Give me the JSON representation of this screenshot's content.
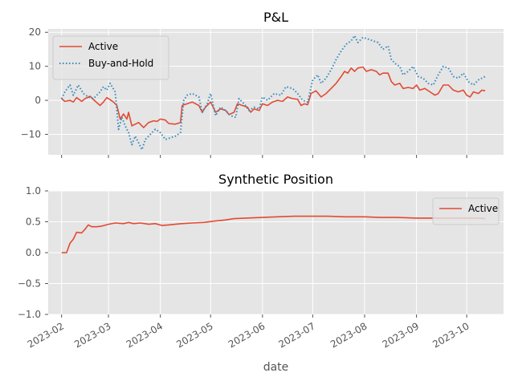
{
  "chart_data": [
    {
      "type": "line",
      "title": "P&L",
      "xlabel": "",
      "ylabel": "",
      "ylim": [
        -16,
        21
      ],
      "yticks": [
        -10,
        0,
        10,
        20
      ],
      "grid": true,
      "legend": "top-left",
      "series": [
        {
          "name": "Active",
          "color": "#e24a33",
          "style": "solid",
          "points": [
            [
              "2023-02-01",
              0.5
            ],
            [
              "2023-02-03",
              -0.3
            ],
            [
              "2023-02-06",
              0.0
            ],
            [
              "2023-02-08",
              -0.5
            ],
            [
              "2023-02-10",
              0.8
            ],
            [
              "2023-02-13",
              -0.3
            ],
            [
              "2023-02-15",
              0.5
            ],
            [
              "2023-02-18",
              1.2
            ],
            [
              "2023-02-21",
              -0.2
            ],
            [
              "2023-02-24",
              -1.5
            ],
            [
              "2023-02-26",
              -0.5
            ],
            [
              "2023-02-28",
              0.8
            ],
            [
              "2023-03-02",
              0.2
            ],
            [
              "2023-03-04",
              -0.5
            ],
            [
              "2023-03-06",
              -1.5
            ],
            [
              "2023-03-08",
              -5.5
            ],
            [
              "2023-03-10",
              -4.0
            ],
            [
              "2023-03-12",
              -5.5
            ],
            [
              "2023-03-13",
              -3.5
            ],
            [
              "2023-03-15",
              -7.5
            ],
            [
              "2023-03-17",
              -7.0
            ],
            [
              "2023-03-19",
              -6.5
            ],
            [
              "2023-03-22",
              -8.0
            ],
            [
              "2023-03-25",
              -6.5
            ],
            [
              "2023-03-28",
              -6.0
            ],
            [
              "2023-03-30",
              -6.2
            ],
            [
              "2023-04-01",
              -5.5
            ],
            [
              "2023-04-04",
              -5.8
            ],
            [
              "2023-04-06",
              -6.8
            ],
            [
              "2023-04-10",
              -7.0
            ],
            [
              "2023-04-13",
              -6.5
            ],
            [
              "2023-04-14",
              -1.5
            ],
            [
              "2023-04-17",
              -1.0
            ],
            [
              "2023-04-20",
              -0.5
            ],
            [
              "2023-04-24",
              -1.5
            ],
            [
              "2023-04-26",
              -3.5
            ],
            [
              "2023-04-28",
              -2.0
            ],
            [
              "2023-05-01",
              -0.5
            ],
            [
              "2023-05-04",
              -3.5
            ],
            [
              "2023-05-07",
              -2.5
            ],
            [
              "2023-05-10",
              -3.0
            ],
            [
              "2023-05-12",
              -4.2
            ],
            [
              "2023-05-15",
              -3.5
            ],
            [
              "2023-05-17",
              -1.0
            ],
            [
              "2023-05-20",
              -1.5
            ],
            [
              "2023-05-23",
              -2.0
            ],
            [
              "2023-05-25",
              -3.5
            ],
            [
              "2023-05-27",
              -2.5
            ],
            [
              "2023-05-30",
              -3.0
            ],
            [
              "2023-06-01",
              -1.0
            ],
            [
              "2023-06-04",
              -1.5
            ],
            [
              "2023-06-07",
              -0.5
            ],
            [
              "2023-06-10",
              0.0
            ],
            [
              "2023-06-13",
              -0.3
            ],
            [
              "2023-06-16",
              1.0
            ],
            [
              "2023-06-19",
              0.5
            ],
            [
              "2023-06-22",
              0.3
            ],
            [
              "2023-06-24",
              -1.5
            ],
            [
              "2023-06-26",
              -1.0
            ],
            [
              "2023-06-28",
              -1.3
            ],
            [
              "2023-06-30",
              2.0
            ],
            [
              "2023-07-03",
              2.8
            ],
            [
              "2023-07-06",
              1.0
            ],
            [
              "2023-07-09",
              2.0
            ],
            [
              "2023-07-12",
              3.5
            ],
            [
              "2023-07-15",
              5.0
            ],
            [
              "2023-07-18",
              7.0
            ],
            [
              "2023-07-20",
              8.5
            ],
            [
              "2023-07-22",
              8.0
            ],
            [
              "2023-07-24",
              9.5
            ],
            [
              "2023-07-26",
              8.5
            ],
            [
              "2023-07-28",
              9.5
            ],
            [
              "2023-07-31",
              9.8
            ],
            [
              "2023-08-02",
              8.5
            ],
            [
              "2023-08-05",
              9.0
            ],
            [
              "2023-08-08",
              8.5
            ],
            [
              "2023-08-10",
              7.5
            ],
            [
              "2023-08-12",
              8.0
            ],
            [
              "2023-08-15",
              8.0
            ],
            [
              "2023-08-17",
              5.5
            ],
            [
              "2023-08-19",
              4.5
            ],
            [
              "2023-08-22",
              5.0
            ],
            [
              "2023-08-24",
              3.5
            ],
            [
              "2023-08-27",
              3.8
            ],
            [
              "2023-08-30",
              3.5
            ],
            [
              "2023-09-01",
              4.5
            ],
            [
              "2023-09-03",
              3.0
            ],
            [
              "2023-09-06",
              3.5
            ],
            [
              "2023-09-09",
              2.5
            ],
            [
              "2023-09-12",
              1.5
            ],
            [
              "2023-09-14",
              2.0
            ],
            [
              "2023-09-17",
              4.5
            ],
            [
              "2023-09-20",
              4.5
            ],
            [
              "2023-09-23",
              3.0
            ],
            [
              "2023-09-26",
              2.5
            ],
            [
              "2023-09-29",
              3.0
            ],
            [
              "2023-10-01",
              1.5
            ],
            [
              "2023-10-03",
              1.0
            ],
            [
              "2023-10-05",
              2.5
            ],
            [
              "2023-10-08",
              2.0
            ],
            [
              "2023-10-10",
              3.0
            ],
            [
              "2023-10-12",
              2.8
            ]
          ]
        },
        {
          "name": "Buy-and-Hold",
          "color": "#348abd",
          "style": "dotted",
          "points": [
            [
              "2023-02-01",
              0.5
            ],
            [
              "2023-02-03",
              2.5
            ],
            [
              "2023-02-06",
              4.5
            ],
            [
              "2023-02-08",
              1.5
            ],
            [
              "2023-02-11",
              4.5
            ],
            [
              "2023-02-14",
              2.0
            ],
            [
              "2023-02-17",
              1.0
            ],
            [
              "2023-02-20",
              0.5
            ],
            [
              "2023-02-24",
              2.5
            ],
            [
              "2023-02-26",
              4.0
            ],
            [
              "2023-02-28",
              3.0
            ],
            [
              "2023-03-02",
              5.0
            ],
            [
              "2023-03-05",
              2.5
            ],
            [
              "2023-03-07",
              -8.5
            ],
            [
              "2023-03-09",
              -5.0
            ],
            [
              "2023-03-11",
              -7.5
            ],
            [
              "2023-03-13",
              -9.5
            ],
            [
              "2023-03-15",
              -13.0
            ],
            [
              "2023-03-17",
              -10.5
            ],
            [
              "2023-03-19",
              -12.5
            ],
            [
              "2023-03-21",
              -14.5
            ],
            [
              "2023-03-23",
              -11.5
            ],
            [
              "2023-03-26",
              -10.0
            ],
            [
              "2023-03-29",
              -8.5
            ],
            [
              "2023-04-01",
              -9.5
            ],
            [
              "2023-04-04",
              -11.5
            ],
            [
              "2023-04-07",
              -11.0
            ],
            [
              "2023-04-10",
              -10.5
            ],
            [
              "2023-04-13",
              -9.5
            ],
            [
              "2023-04-15",
              0.0
            ],
            [
              "2023-04-17",
              1.5
            ],
            [
              "2023-04-20",
              2.0
            ],
            [
              "2023-04-24",
              1.0
            ],
            [
              "2023-04-26",
              -3.5
            ],
            [
              "2023-04-29",
              -1.0
            ],
            [
              "2023-05-01",
              2.0
            ],
            [
              "2023-05-04",
              -4.5
            ],
            [
              "2023-05-07",
              -2.0
            ],
            [
              "2023-05-10",
              -3.0
            ],
            [
              "2023-05-13",
              -4.5
            ],
            [
              "2023-05-16",
              -5.0
            ],
            [
              "2023-05-18",
              0.5
            ],
            [
              "2023-05-21",
              -1.0
            ],
            [
              "2023-05-24",
              -3.0
            ],
            [
              "2023-05-27",
              -2.0
            ],
            [
              "2023-05-30",
              -2.5
            ],
            [
              "2023-06-01",
              1.0
            ],
            [
              "2023-06-04",
              0.0
            ],
            [
              "2023-06-08",
              2.0
            ],
            [
              "2023-06-12",
              1.5
            ],
            [
              "2023-06-15",
              4.0
            ],
            [
              "2023-06-19",
              3.5
            ],
            [
              "2023-06-22",
              2.0
            ],
            [
              "2023-06-25",
              0.0
            ],
            [
              "2023-06-28",
              -0.5
            ],
            [
              "2023-07-01",
              6.0
            ],
            [
              "2023-07-04",
              7.5
            ],
            [
              "2023-07-06",
              5.0
            ],
            [
              "2023-07-09",
              6.5
            ],
            [
              "2023-07-12",
              9.0
            ],
            [
              "2023-07-15",
              12.0
            ],
            [
              "2023-07-18",
              14.5
            ],
            [
              "2023-07-21",
              16.5
            ],
            [
              "2023-07-24",
              17.5
            ],
            [
              "2023-07-26",
              19.0
            ],
            [
              "2023-07-28",
              17.0
            ],
            [
              "2023-07-31",
              18.5
            ],
            [
              "2023-08-03",
              18.0
            ],
            [
              "2023-08-06",
              17.5
            ],
            [
              "2023-08-09",
              17.0
            ],
            [
              "2023-08-12",
              15.0
            ],
            [
              "2023-08-15",
              16.0
            ],
            [
              "2023-08-17",
              12.0
            ],
            [
              "2023-08-20",
              10.5
            ],
            [
              "2023-08-22",
              10.0
            ],
            [
              "2023-08-24",
              7.5
            ],
            [
              "2023-08-27",
              8.5
            ],
            [
              "2023-08-30",
              10.0
            ],
            [
              "2023-09-02",
              7.0
            ],
            [
              "2023-09-05",
              6.5
            ],
            [
              "2023-09-08",
              5.0
            ],
            [
              "2023-09-11",
              4.5
            ],
            [
              "2023-09-14",
              7.5
            ],
            [
              "2023-09-17",
              10.0
            ],
            [
              "2023-09-20",
              9.5
            ],
            [
              "2023-09-23",
              7.0
            ],
            [
              "2023-09-26",
              6.5
            ],
            [
              "2023-09-29",
              8.0
            ],
            [
              "2023-10-02",
              5.5
            ],
            [
              "2023-10-05",
              4.5
            ],
            [
              "2023-10-08",
              6.0
            ],
            [
              "2023-10-12",
              7.0
            ]
          ]
        }
      ]
    },
    {
      "type": "line",
      "title": "Synthetic Position",
      "xlabel": "date",
      "ylabel": "",
      "ylim": [
        -1.0,
        1.0
      ],
      "yticks": [
        -1.0,
        -0.5,
        0.0,
        0.5,
        1.0
      ],
      "ytick_labels": [
        "−1.0",
        "−0.5",
        "0.0",
        "0.5",
        "1.0"
      ],
      "grid": true,
      "legend": "top-right",
      "x_ticks": [
        "2023-02",
        "2023-03",
        "2023-04",
        "2023-05",
        "2023-06",
        "2023-07",
        "2023-08",
        "2023-09",
        "2023-10"
      ],
      "xlim": [
        "2023-01-24",
        "2023-10-23"
      ],
      "series": [
        {
          "name": "Active",
          "color": "#e24a33",
          "style": "solid",
          "points": [
            [
              "2023-02-01",
              0.0
            ],
            [
              "2023-02-04",
              0.0
            ],
            [
              "2023-02-06",
              0.15
            ],
            [
              "2023-02-08",
              0.22
            ],
            [
              "2023-02-10",
              0.33
            ],
            [
              "2023-02-13",
              0.32
            ],
            [
              "2023-02-15",
              0.38
            ],
            [
              "2023-02-17",
              0.45
            ],
            [
              "2023-02-19",
              0.42
            ],
            [
              "2023-02-22",
              0.42
            ],
            [
              "2023-02-25",
              0.43
            ],
            [
              "2023-03-01",
              0.46
            ],
            [
              "2023-03-05",
              0.48
            ],
            [
              "2023-03-10",
              0.47
            ],
            [
              "2023-03-13",
              0.49
            ],
            [
              "2023-03-16",
              0.47
            ],
            [
              "2023-03-20",
              0.48
            ],
            [
              "2023-03-25",
              0.46
            ],
            [
              "2023-03-29",
              0.47
            ],
            [
              "2023-04-02",
              0.44
            ],
            [
              "2023-04-06",
              0.45
            ],
            [
              "2023-04-10",
              0.46
            ],
            [
              "2023-04-14",
              0.47
            ],
            [
              "2023-04-20",
              0.48
            ],
            [
              "2023-04-27",
              0.49
            ],
            [
              "2023-05-03",
              0.51
            ],
            [
              "2023-05-10",
              0.53
            ],
            [
              "2023-05-15",
              0.55
            ],
            [
              "2023-05-22",
              0.56
            ],
            [
              "2023-06-01",
              0.57
            ],
            [
              "2023-06-10",
              0.58
            ],
            [
              "2023-06-20",
              0.59
            ],
            [
              "2023-06-28",
              0.59
            ],
            [
              "2023-07-10",
              0.59
            ],
            [
              "2023-07-20",
              0.58
            ],
            [
              "2023-08-01",
              0.58
            ],
            [
              "2023-08-10",
              0.57
            ],
            [
              "2023-08-20",
              0.57
            ],
            [
              "2023-09-01",
              0.56
            ],
            [
              "2023-09-10",
              0.56
            ],
            [
              "2023-09-20",
              0.56
            ],
            [
              "2023-10-01",
              0.56
            ],
            [
              "2023-10-08",
              0.56
            ],
            [
              "2023-10-12",
              0.55
            ]
          ]
        }
      ]
    }
  ]
}
